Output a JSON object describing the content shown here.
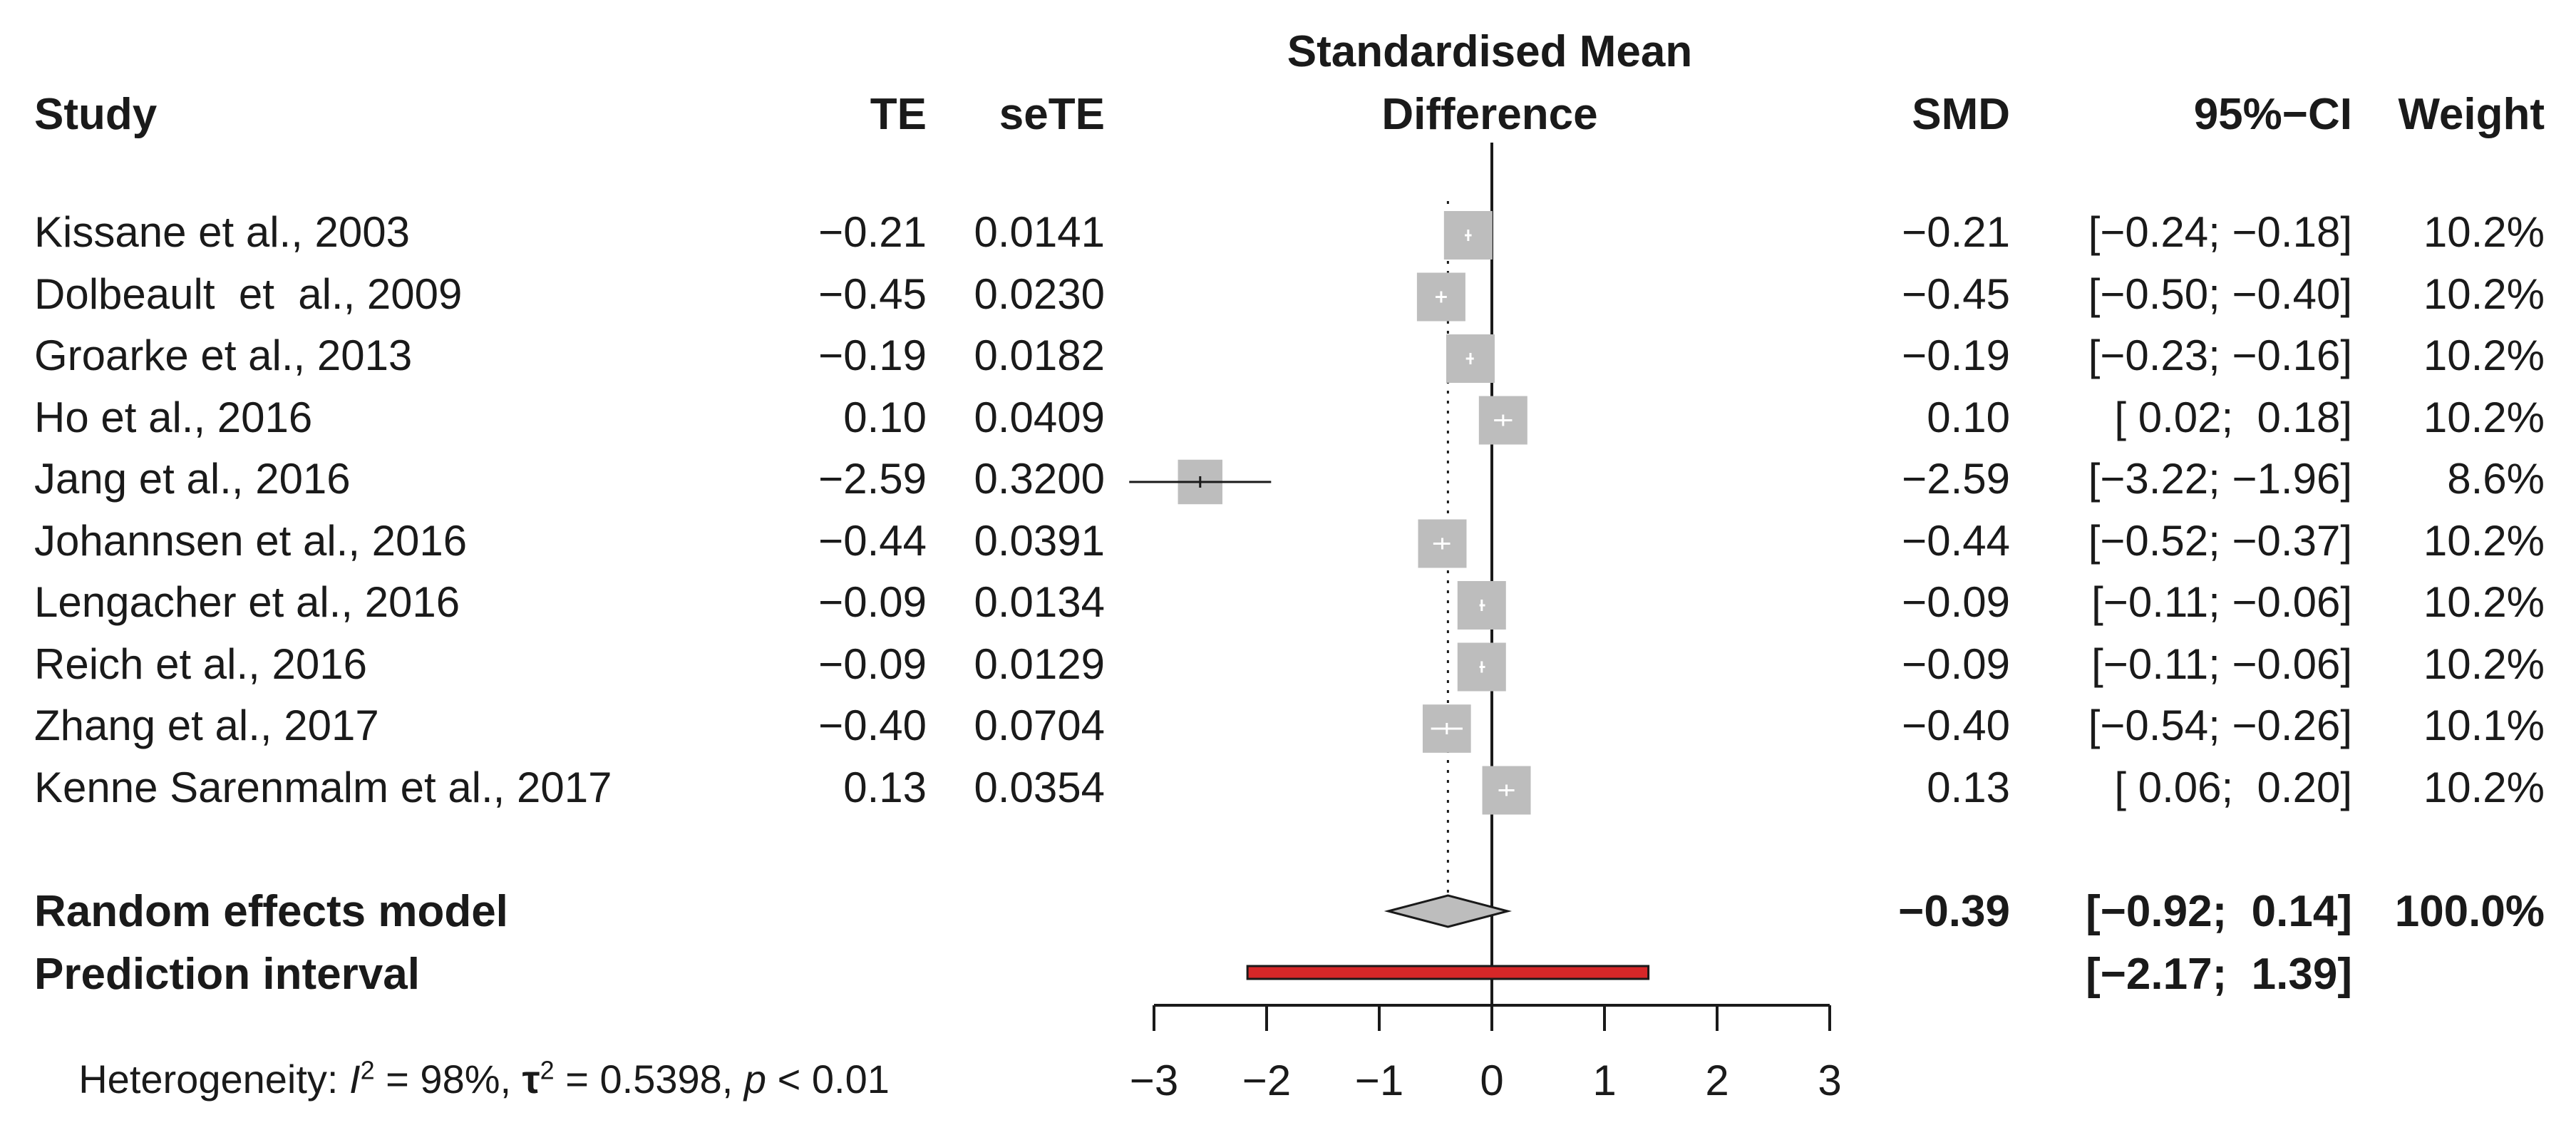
{
  "chart_data": {
    "type": "forest",
    "headers": {
      "study": "Study",
      "te": "TE",
      "sete": "seTE",
      "plot_title_line1": "Standardised Mean",
      "plot_title_line2": "Difference",
      "smd": "SMD",
      "ci": "95%−CI",
      "weight": "Weight"
    },
    "studies": [
      {
        "name": "Kissane et al., 2003",
        "te": "−0.21",
        "sete": "0.0141",
        "smd": "−0.21",
        "ci": "[−0.24; −0.18]",
        "weight": "10.2%",
        "est": -0.21,
        "lo": -0.24,
        "hi": -0.18,
        "w": 10.2
      },
      {
        "name": "Dolbeault  et  al., 2009",
        "te": "−0.45",
        "sete": "0.0230",
        "smd": "−0.45",
        "ci": "[−0.50; −0.40]",
        "weight": "10.2%",
        "est": -0.45,
        "lo": -0.5,
        "hi": -0.4,
        "w": 10.2
      },
      {
        "name": "Groarke et al., 2013",
        "te": "−0.19",
        "sete": "0.0182",
        "smd": "−0.19",
        "ci": "[−0.23; −0.16]",
        "weight": "10.2%",
        "est": -0.19,
        "lo": -0.23,
        "hi": -0.16,
        "w": 10.2
      },
      {
        "name": "Ho et al., 2016",
        "te": "0.10",
        "sete": "0.0409",
        "smd": "0.10",
        "ci": "[ 0.02;  0.18]",
        "weight": "10.2%",
        "est": 0.1,
        "lo": 0.02,
        "hi": 0.18,
        "w": 10.2
      },
      {
        "name": "Jang et al., 2016",
        "te": "−2.59",
        "sete": "0.3200",
        "smd": "−2.59",
        "ci": "[−3.22; −1.96]",
        "weight": "8.6%",
        "est": -2.59,
        "lo": -3.22,
        "hi": -1.96,
        "w": 8.6
      },
      {
        "name": "Johannsen et al., 2016",
        "te": "−0.44",
        "sete": "0.0391",
        "smd": "−0.44",
        "ci": "[−0.52; −0.37]",
        "weight": "10.2%",
        "est": -0.44,
        "lo": -0.52,
        "hi": -0.37,
        "w": 10.2
      },
      {
        "name": "Lengacher et al., 2016",
        "te": "−0.09",
        "sete": "0.0134",
        "smd": "−0.09",
        "ci": "[−0.11; −0.06]",
        "weight": "10.2%",
        "est": -0.09,
        "lo": -0.11,
        "hi": -0.06,
        "w": 10.2
      },
      {
        "name": "Reich et al., 2016",
        "te": "−0.09",
        "sete": "0.0129",
        "smd": "−0.09",
        "ci": "[−0.11; −0.06]",
        "weight": "10.2%",
        "est": -0.09,
        "lo": -0.11,
        "hi": -0.06,
        "w": 10.2
      },
      {
        "name": "Zhang et al., 2017",
        "te": "−0.40",
        "sete": "0.0704",
        "smd": "−0.40",
        "ci": "[−0.54; −0.26]",
        "weight": "10.1%",
        "est": -0.4,
        "lo": -0.54,
        "hi": -0.26,
        "w": 10.1
      },
      {
        "name": "Kenne Sarenmalm et al., 2017",
        "te": "0.13",
        "sete": "0.0354",
        "smd": "0.13",
        "ci": "[ 0.06;  0.20]",
        "weight": "10.2%",
        "est": 0.13,
        "lo": 0.06,
        "hi": 0.2,
        "w": 10.2
      }
    ],
    "random_effects": {
      "label": "Random effects model",
      "smd": "−0.39",
      "ci": "[−0.92;  0.14]",
      "weight": "100.0%",
      "est": -0.39,
      "lo": -0.92,
      "hi": 0.14
    },
    "prediction_interval": {
      "label": "Prediction interval",
      "ci": "[−2.17;  1.39]",
      "lo": -2.17,
      "hi": 1.39
    },
    "heterogeneity": {
      "prefix": "Heterogeneity: ",
      "i2_symbol": "I",
      "i2_sup": "2",
      "i2_value": " = 98%, ",
      "tau_symbol": "τ",
      "tau_sup": "2",
      "tau_value": " = 0.5398, ",
      "p_symbol": "p",
      "p_value": " < 0.01"
    },
    "x_axis": {
      "ticks": [
        -3,
        -2,
        -1,
        0,
        1,
        2,
        3
      ],
      "tick_labels": [
        "−3",
        "−2",
        "−1",
        "0",
        "1",
        "2",
        "3"
      ],
      "xlim": [
        -3,
        3
      ]
    },
    "colors": {
      "square": "#bdbdbd",
      "diamond": "#bdbdbd",
      "prediction_bar": "#d62728",
      "line": "#1a1a1a"
    }
  }
}
